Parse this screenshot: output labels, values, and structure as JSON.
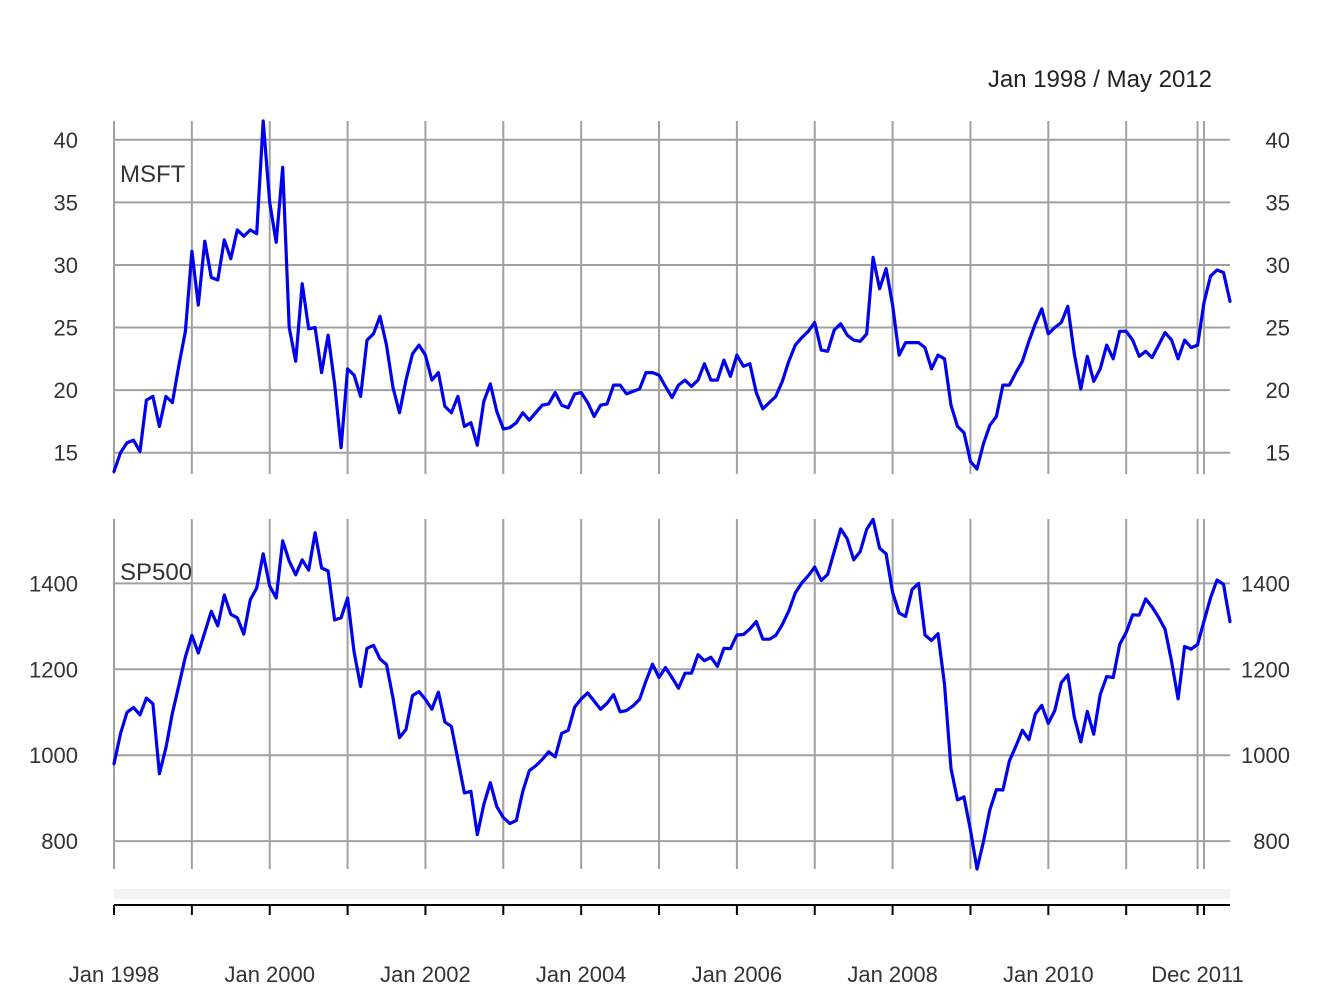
{
  "date_range": "Jan 1998 / May 2012",
  "colors": {
    "series": "#0000ee",
    "grid": "#a0a0a0",
    "text": "#333333",
    "axis": "#000000"
  },
  "chart_data": {
    "type": "line",
    "x_axis": {
      "tick_labels": [
        {
          "date": "1998-01",
          "label": "Jan 1998"
        },
        {
          "date": "2000-01",
          "label": "Jan 2000"
        },
        {
          "date": "2002-01",
          "label": "Jan 2002"
        },
        {
          "date": "2004-01",
          "label": "Jan 2004"
        },
        {
          "date": "2006-01",
          "label": "Jan 2006"
        },
        {
          "date": "2008-01",
          "label": "Jan 2008"
        },
        {
          "date": "2010-01",
          "label": "Jan 2010"
        },
        {
          "date": "2011-12",
          "label": "Dec 2011"
        }
      ],
      "range": [
        "1998-01",
        "2012-05"
      ],
      "grid": true
    },
    "panels": [
      {
        "name": "MSFT",
        "ylim": [
          13.3,
          41.5
        ],
        "yticks": [
          15,
          20,
          25,
          30,
          35,
          40
        ],
        "start": "1998-01",
        "values": [
          13.5,
          15.0,
          15.8,
          16.0,
          15.1,
          19.2,
          19.5,
          17.1,
          19.5,
          19.0,
          22.0,
          24.7,
          31.1,
          26.8,
          31.9,
          29.0,
          28.8,
          32.0,
          30.5,
          32.8,
          32.3,
          32.8,
          32.5,
          41.5,
          35.0,
          31.8,
          37.8,
          25.0,
          22.3,
          28.5,
          24.9,
          25.0,
          21.4,
          24.4,
          20.5,
          15.4,
          21.7,
          21.2,
          19.5,
          24.0,
          24.5,
          25.9,
          23.6,
          20.2,
          18.2,
          20.8,
          22.9,
          23.6,
          22.8,
          20.8,
          21.4,
          18.7,
          18.2,
          19.5,
          17.1,
          17.4,
          15.6,
          19.1,
          20.5,
          18.3,
          16.9,
          17.0,
          17.4,
          18.2,
          17.6,
          18.2,
          18.8,
          18.9,
          19.8,
          18.8,
          18.6,
          19.7,
          19.8,
          19.0,
          17.9,
          18.8,
          18.9,
          20.4,
          20.4,
          19.7,
          19.9,
          20.1,
          21.4,
          21.4,
          21.2,
          20.3,
          19.4,
          20.4,
          20.8,
          20.3,
          20.8,
          22.1,
          20.8,
          20.8,
          22.4,
          21.1,
          22.8,
          21.9,
          22.1,
          19.8,
          18.5,
          19.0,
          19.5,
          20.7,
          22.3,
          23.6,
          24.2,
          24.7,
          25.4,
          23.2,
          23.1,
          24.8,
          25.3,
          24.4,
          24.0,
          23.9,
          24.5,
          30.6,
          28.1,
          29.7,
          26.8,
          22.8,
          23.8,
          23.8,
          23.8,
          23.4,
          21.7,
          22.8,
          22.5,
          18.8,
          17.1,
          16.6,
          14.3,
          13.7,
          15.7,
          17.2,
          17.9,
          20.4,
          20.4,
          21.4,
          22.3,
          23.9,
          25.3,
          26.5,
          24.5,
          25.0,
          25.4,
          26.7,
          22.9,
          20.1,
          22.7,
          20.7,
          21.7,
          23.6,
          22.5,
          24.7,
          24.7,
          24.0,
          22.7,
          23.1,
          22.6,
          23.6,
          24.6,
          24.0,
          22.5,
          24.0,
          23.4,
          23.6,
          27.0,
          29.1,
          29.6,
          29.4,
          27.1
        ]
      },
      {
        "name": "SP500",
        "ylim": [
          735,
          1550
        ],
        "yticks": [
          800,
          1000,
          1200,
          1400
        ],
        "start": "1998-01",
        "values": [
          980,
          1050,
          1100,
          1111,
          1094,
          1133,
          1120,
          957,
          1017,
          1098,
          1163,
          1229,
          1279,
          1238,
          1286,
          1335,
          1301,
          1373,
          1328,
          1320,
          1282,
          1362,
          1389,
          1469,
          1394,
          1366,
          1499,
          1452,
          1420,
          1455,
          1431,
          1518,
          1436,
          1429,
          1315,
          1320,
          1366,
          1240,
          1160,
          1249,
          1256,
          1224,
          1211,
          1133,
          1041,
          1060,
          1139,
          1148,
          1130,
          1107,
          1147,
          1077,
          1067,
          990,
          912,
          916,
          815,
          885,
          936,
          880,
          855,
          841,
          848,
          916,
          964,
          975,
          990,
          1008,
          996,
          1051,
          1058,
          1112,
          1131,
          1145,
          1126,
          1107,
          1121,
          1141,
          1101,
          1104,
          1115,
          1130,
          1173,
          1212,
          1181,
          1204,
          1181,
          1156,
          1191,
          1191,
          1234,
          1220,
          1228,
          1207,
          1249,
          1248,
          1280,
          1281,
          1294,
          1311,
          1270,
          1270,
          1279,
          1304,
          1336,
          1378,
          1401,
          1418,
          1438,
          1407,
          1421,
          1474,
          1527,
          1504,
          1455,
          1474,
          1526,
          1549,
          1482,
          1469,
          1379,
          1331,
          1323,
          1386,
          1400,
          1280,
          1267,
          1283,
          1165,
          969,
          896,
          903,
          825,
          735,
          798,
          873,
          920,
          919,
          987,
          1021,
          1058,
          1036,
          1096,
          1116,
          1074,
          1104,
          1169,
          1187,
          1089,
          1031,
          1102,
          1049,
          1141,
          1183,
          1181,
          1258,
          1286,
          1327,
          1326,
          1364,
          1345,
          1321,
          1293,
          1218,
          1131,
          1253,
          1247,
          1258,
          1312,
          1366,
          1408,
          1398,
          1311
        ]
      }
    ]
  }
}
